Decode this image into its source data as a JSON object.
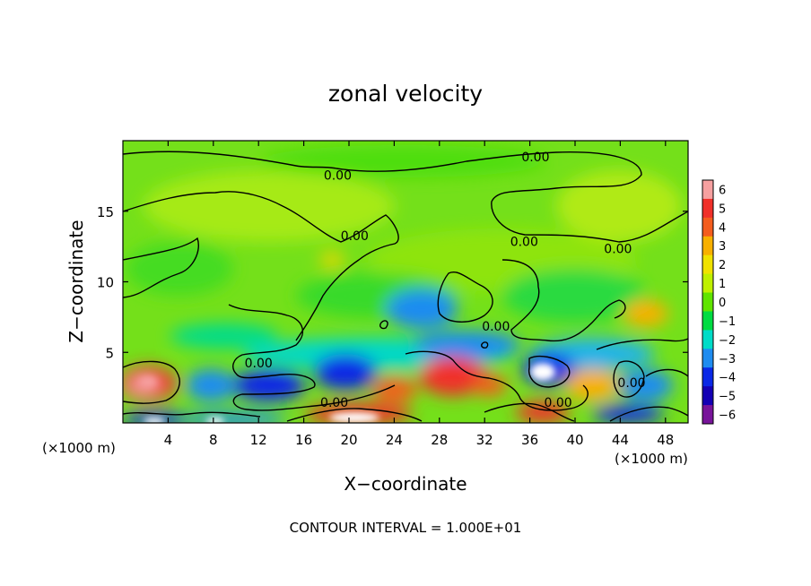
{
  "chart_data": {
    "type": "heatmap",
    "title": "zonal velocity",
    "xlabel": "X−coordinate",
    "ylabel": "Z−coordinate",
    "x_unit": "(×1000 m)",
    "x_unit_right": "(×1000 m)",
    "footer": "CONTOUR INTERVAL = 1.000E+01",
    "xlim": [
      0,
      50
    ],
    "ylim": [
      0,
      20
    ],
    "x_ticks": [
      4,
      8,
      12,
      16,
      20,
      24,
      28,
      32,
      36,
      40,
      44,
      48
    ],
    "x_tick_labels": [
      "4",
      "8",
      "12",
      "16",
      "20",
      "24",
      "28",
      "32",
      "36",
      "40",
      "44",
      "48"
    ],
    "y_ticks": [
      5,
      10,
      15
    ],
    "y_tick_labels": [
      "5",
      "10",
      "15"
    ],
    "colorbar": {
      "min": -6,
      "max": 6,
      "labels": [
        "6",
        "5",
        "4",
        "3",
        "2",
        "1",
        "0",
        "−1",
        "−2",
        "−3",
        "−4",
        "−5",
        "−6"
      ],
      "colors": [
        "#f6a0a0",
        "#f0302a",
        "#f45d1e",
        "#f8b000",
        "#f0e200",
        "#bff000",
        "#60e400",
        "#00dc42",
        "#00dcc8",
        "#1e8cf0",
        "#0a28e6",
        "#1400b4",
        "#78149a"
      ]
    },
    "contour_labels": [
      {
        "text": "0.00",
        "x": 19.0,
        "y": 17.5
      },
      {
        "text": "0.00",
        "x": 36.5,
        "y": 18.8
      },
      {
        "text": "0.00",
        "x": 20.5,
        "y": 13.2
      },
      {
        "text": "0.00",
        "x": 35.5,
        "y": 12.8
      },
      {
        "text": "0.00",
        "x": 43.8,
        "y": 12.3
      },
      {
        "text": "0.00",
        "x": 33.0,
        "y": 6.8
      },
      {
        "text": "0.00",
        "x": 12.0,
        "y": 4.2
      },
      {
        "text": "0.00",
        "x": 18.7,
        "y": 1.4
      },
      {
        "text": "0.00",
        "x": 38.5,
        "y": 1.4
      },
      {
        "text": "0.00",
        "x": 45.0,
        "y": 2.8
      }
    ]
  }
}
